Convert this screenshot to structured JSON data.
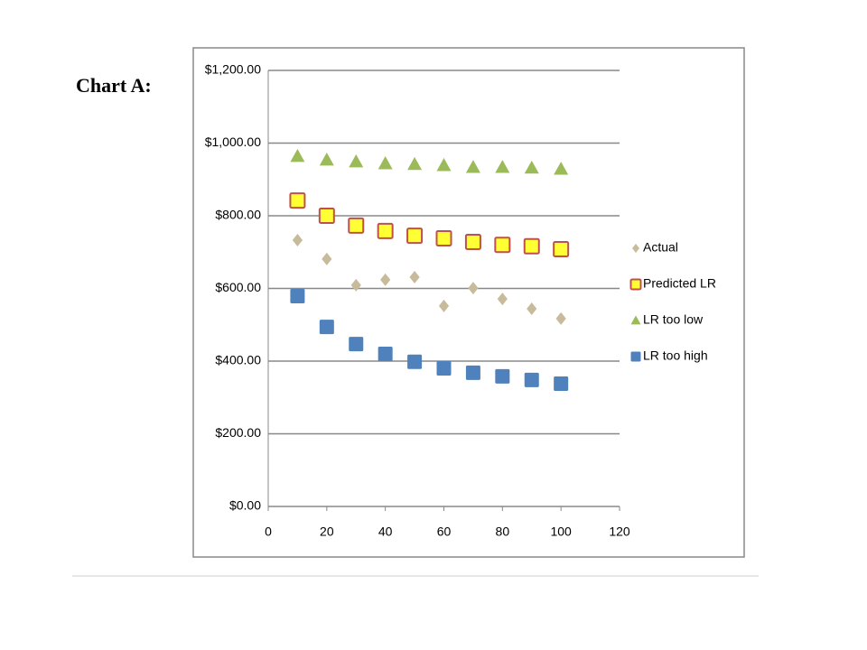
{
  "heading": "Chart A:",
  "chart_data": {
    "type": "scatter",
    "x": [
      10,
      20,
      30,
      40,
      50,
      60,
      70,
      80,
      90,
      100
    ],
    "series": [
      {
        "name": "Actual",
        "color": "#c8bb9b",
        "marker": "diamond",
        "values": [
          733,
          681,
          609,
          624,
          631,
          552,
          601,
          571,
          544,
          517
        ]
      },
      {
        "name": "Predicted LR",
        "color": "#ffff33",
        "edgecolor": "#c0504d",
        "marker": "square",
        "values": [
          842,
          800,
          773,
          758,
          745,
          738,
          728,
          720,
          716,
          708
        ]
      },
      {
        "name": "LR too low",
        "color": "#9bbb59",
        "marker": "triangle",
        "values": [
          964,
          954,
          949,
          944,
          942,
          939,
          934,
          934,
          932,
          929
        ]
      },
      {
        "name": "LR too high",
        "color": "#4f81bd",
        "marker": "square",
        "values": [
          579,
          494,
          447,
          420,
          398,
          380,
          368,
          358,
          348,
          338
        ]
      }
    ],
    "xlim": [
      0,
      120
    ],
    "xticks": [
      0,
      20,
      40,
      60,
      80,
      100,
      120
    ],
    "ylim": [
      0,
      1200
    ],
    "yticks": [
      {
        "value": 0,
        "label": "$0.00"
      },
      {
        "value": 200,
        "label": "$200.00"
      },
      {
        "value": 400,
        "label": "$400.00"
      },
      {
        "value": 600,
        "label": "$600.00"
      },
      {
        "value": 800,
        "label": "$800.00"
      },
      {
        "value": 1000,
        "label": "$1,000.00"
      },
      {
        "value": 1200,
        "label": "$1,200.00"
      }
    ],
    "grid": true,
    "legend": "right"
  }
}
